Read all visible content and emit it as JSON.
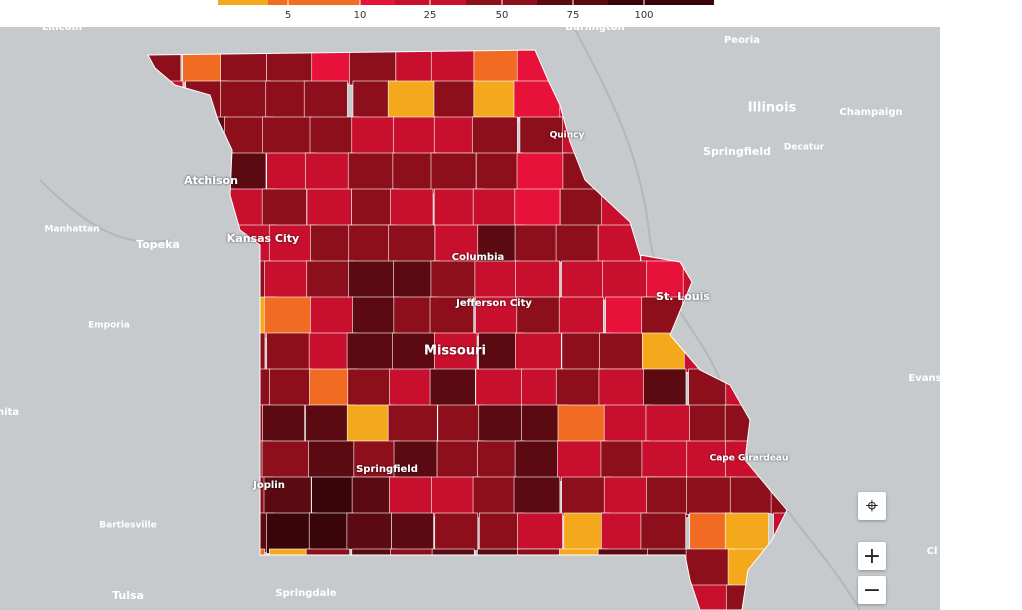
{
  "legend": {
    "ticks": [
      5,
      10,
      25,
      50,
      75,
      100
    ]
  },
  "places": [
    {
      "label": "Lincoln"
    },
    {
      "label": "Burlington"
    },
    {
      "label": "Peoria"
    },
    {
      "label": "Illinois"
    },
    {
      "label": "Champaign"
    },
    {
      "label": "Quincy"
    },
    {
      "label": "Springfield"
    },
    {
      "label": "Decatur"
    },
    {
      "label": "Atchison"
    },
    {
      "label": "Manhattan"
    },
    {
      "label": "Topeka"
    },
    {
      "label": "Kansas City"
    },
    {
      "label": "Columbia"
    },
    {
      "label": "St. Louis"
    },
    {
      "label": "Jefferson City"
    },
    {
      "label": "Emporia"
    },
    {
      "label": "Missouri"
    },
    {
      "label": "Evans"
    },
    {
      "label": "hita"
    },
    {
      "label": "Springfield"
    },
    {
      "label": "Joplin"
    },
    {
      "label": "Cape Girardeau"
    },
    {
      "label": "Bartlesville"
    },
    {
      "label": "Tulsa"
    },
    {
      "label": "Springdale"
    },
    {
      "label": "Cl"
    }
  ]
}
